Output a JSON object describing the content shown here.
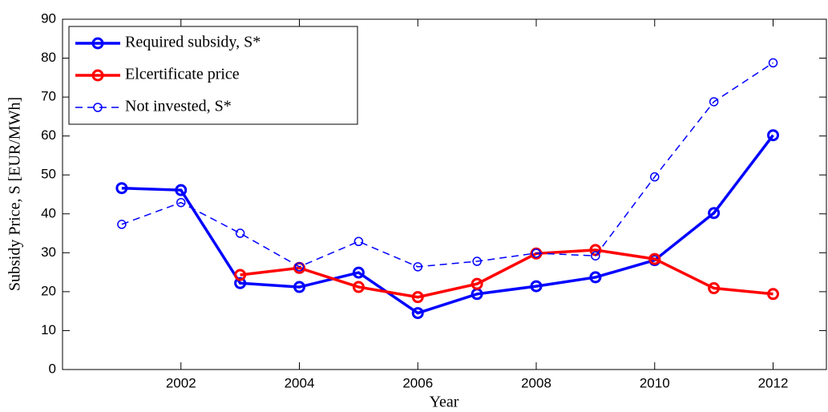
{
  "chart_data": {
    "type": "line",
    "x_label": "Year",
    "y_label": "Subsidy Price, S [EUR/MWh]",
    "x": [
      2001,
      2002,
      2003,
      2004,
      2005,
      2006,
      2007,
      2008,
      2009,
      2010,
      2011,
      2012
    ],
    "series": [
      {
        "name": "Required subsidy, S*",
        "color": "#0000ff",
        "linestyle": "solid",
        "values": [
          46.6,
          46.1,
          22.2,
          21.2,
          24.9,
          14.5,
          19.4,
          21.4,
          23.7,
          28.1,
          40.2,
          60.2
        ]
      },
      {
        "name": "Elcertificate price",
        "color": "#ff0000",
        "linestyle": "solid",
        "values": [
          null,
          null,
          24.3,
          26.1,
          21.2,
          18.6,
          22.0,
          29.8,
          30.7,
          28.4,
          20.9,
          19.4
        ]
      },
      {
        "name": "Not invested, S*",
        "color": "#0000ff",
        "linestyle": "dashed",
        "values": [
          37.3,
          42.9,
          35.0,
          26.4,
          32.9,
          26.4,
          27.8,
          29.9,
          29.2,
          49.5,
          68.8,
          78.8
        ]
      }
    ],
    "xlim": [
      2000,
      2012.9
    ],
    "xticks": [
      2002,
      2004,
      2006,
      2008,
      2010,
      2012
    ],
    "ylim": [
      0,
      90
    ],
    "yticks": [
      0,
      10,
      20,
      30,
      40,
      50,
      60,
      70,
      80,
      90
    ],
    "grid": false,
    "legend": "upper left"
  }
}
